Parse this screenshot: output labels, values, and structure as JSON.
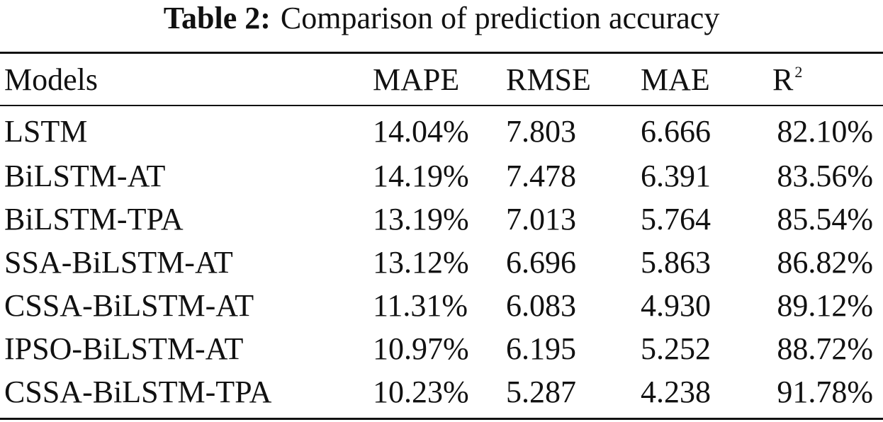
{
  "caption": {
    "label": "Table 2:",
    "title": "Comparison of prediction accuracy"
  },
  "table": {
    "headers": {
      "model": "Models",
      "mape": "MAPE",
      "rmse": "RMSE",
      "mae": "MAE",
      "r2_base": "R",
      "r2_sup": "2"
    },
    "rows": [
      {
        "model": "LSTM",
        "mape": "14.04%",
        "rmse": "7.803",
        "mae": "6.666",
        "r2": "82.10%"
      },
      {
        "model": "BiLSTM-AT",
        "mape": "14.19%",
        "rmse": "7.478",
        "mae": "6.391",
        "r2": "83.56%"
      },
      {
        "model": "BiLSTM-TPA",
        "mape": "13.19%",
        "rmse": "7.013",
        "mae": "5.764",
        "r2": "85.54%"
      },
      {
        "model": "SSA-BiLSTM-AT",
        "mape": "13.12%",
        "rmse": "6.696",
        "mae": "5.863",
        "r2": "86.82%"
      },
      {
        "model": "CSSA-BiLSTM-AT",
        "mape": "11.31%",
        "rmse": "6.083",
        "mae": "4.930",
        "r2": "89.12%"
      },
      {
        "model": "IPSO-BiLSTM-AT",
        "mape": "10.97%",
        "rmse": "6.195",
        "mae": "5.252",
        "r2": "88.72%"
      },
      {
        "model": "CSSA-BiLSTM-TPA",
        "mape": "10.23%",
        "rmse": "5.287",
        "mae": "4.238",
        "r2": "91.78%"
      }
    ]
  }
}
